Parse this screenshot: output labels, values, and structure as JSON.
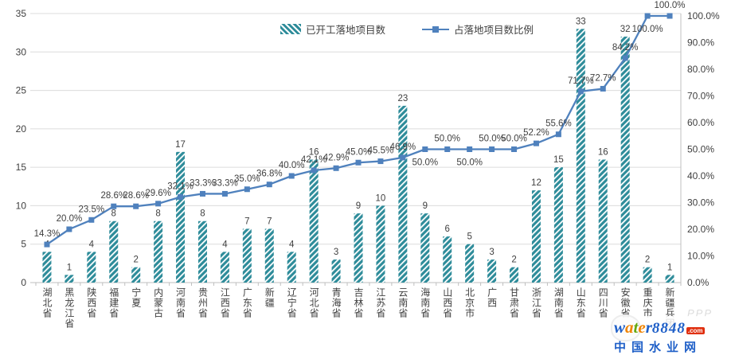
{
  "chart_data": {
    "type": "bar",
    "subtype": "bar-line-combo",
    "title": "",
    "legend_position": "top-center",
    "grid": true,
    "categories": [
      "湖北省",
      "黑龙江省",
      "陕西省",
      "福建省",
      "宁夏",
      "内蒙古",
      "河南省",
      "贵州省",
      "江西省",
      "广东省",
      "新疆",
      "辽宁省",
      "河北省",
      "青海省",
      "吉林省",
      "江苏省",
      "云南省",
      "海南省",
      "山西省",
      "北京市",
      "广西",
      "甘肃省",
      "浙江省",
      "湖南省",
      "山东省",
      "四川省",
      "安徽省",
      "重庆市",
      "新疆兵团"
    ],
    "series": [
      {
        "name": "已开工落地项目数",
        "type": "bar",
        "color": "#2E8C9A",
        "values": [
          4,
          1,
          4,
          8,
          2,
          8,
          17,
          8,
          4,
          7,
          7,
          4,
          16,
          3,
          9,
          10,
          23,
          9,
          6,
          5,
          3,
          2,
          12,
          15,
          33,
          16,
          32,
          2,
          1
        ]
      },
      {
        "name": "占落地项目数比例",
        "type": "line",
        "color": "#4F81BD",
        "values": [
          14.3,
          20.0,
          23.5,
          28.6,
          28.6,
          29.6,
          32.1,
          33.3,
          33.3,
          35.0,
          36.8,
          40.0,
          42.1,
          42.9,
          45.0,
          45.5,
          46.9,
          50.0,
          50.0,
          50.0,
          50.0,
          50.0,
          52.2,
          55.6,
          71.7,
          72.7,
          84.2,
          100.0,
          100.0
        ],
        "labels": [
          "14.3%",
          "20.0%",
          "23.5%",
          "28.6%",
          "28.6%",
          "29.6%",
          "32.1%",
          "33.3%",
          "33.3%",
          "35.0%",
          "36.8%",
          "40.0%",
          "42.1%",
          "42.9%",
          "45.0%",
          "45.5%",
          "46.9%",
          "50.0%",
          "50.0%",
          "50.0%",
          "50.0%",
          "50.0%",
          "52.2%",
          "55.6%",
          "71.7%",
          "72.7%",
          "84.2%",
          "100.0%",
          "100.0%"
        ],
        "label_side": [
          "above",
          "above",
          "above",
          "above",
          "above",
          "above",
          "above",
          "above",
          "above",
          "above",
          "above",
          "above",
          "above",
          "above",
          "above",
          "above",
          "above",
          "below",
          "above",
          "below",
          "above",
          "above",
          "above",
          "above",
          "above",
          "above",
          "above",
          "below",
          "above"
        ]
      }
    ],
    "left_axis": {
      "min": 0,
      "max": 35,
      "step": 5,
      "tick_labels": [
        "0",
        "5",
        "10",
        "15",
        "20",
        "25",
        "30",
        "35"
      ]
    },
    "right_axis": {
      "min": 0,
      "max": 100,
      "step": 10,
      "tick_labels": [
        "0.0%",
        "10.0%",
        "20.0%",
        "30.0%",
        "40.0%",
        "50.0%",
        "60.0%",
        "70.0%",
        "80.0%",
        "90.0%",
        "100.0%"
      ]
    }
  },
  "legend": {
    "bar_label": "已开工落地项目数",
    "line_label": "占落地项目数比例"
  },
  "watermark": {
    "word_letters": [
      {
        "ch": "w",
        "color": "#2060c8"
      },
      {
        "ch": "a",
        "color": "#f08300"
      },
      {
        "ch": "t",
        "color": "#66a80f"
      },
      {
        "ch": "e",
        "color": "#f08300"
      },
      {
        "ch": "r",
        "color": "#2060c8"
      }
    ],
    "number": "8848",
    "tld": ".com",
    "site_name": "中国水业网",
    "ghost_text": "PPP"
  },
  "colors": {
    "bar": "#2E8C9A",
    "line": "#4F81BD",
    "gridline": "#DCDCDC",
    "axis_line": "#BFBFBF",
    "text": "#404040"
  }
}
